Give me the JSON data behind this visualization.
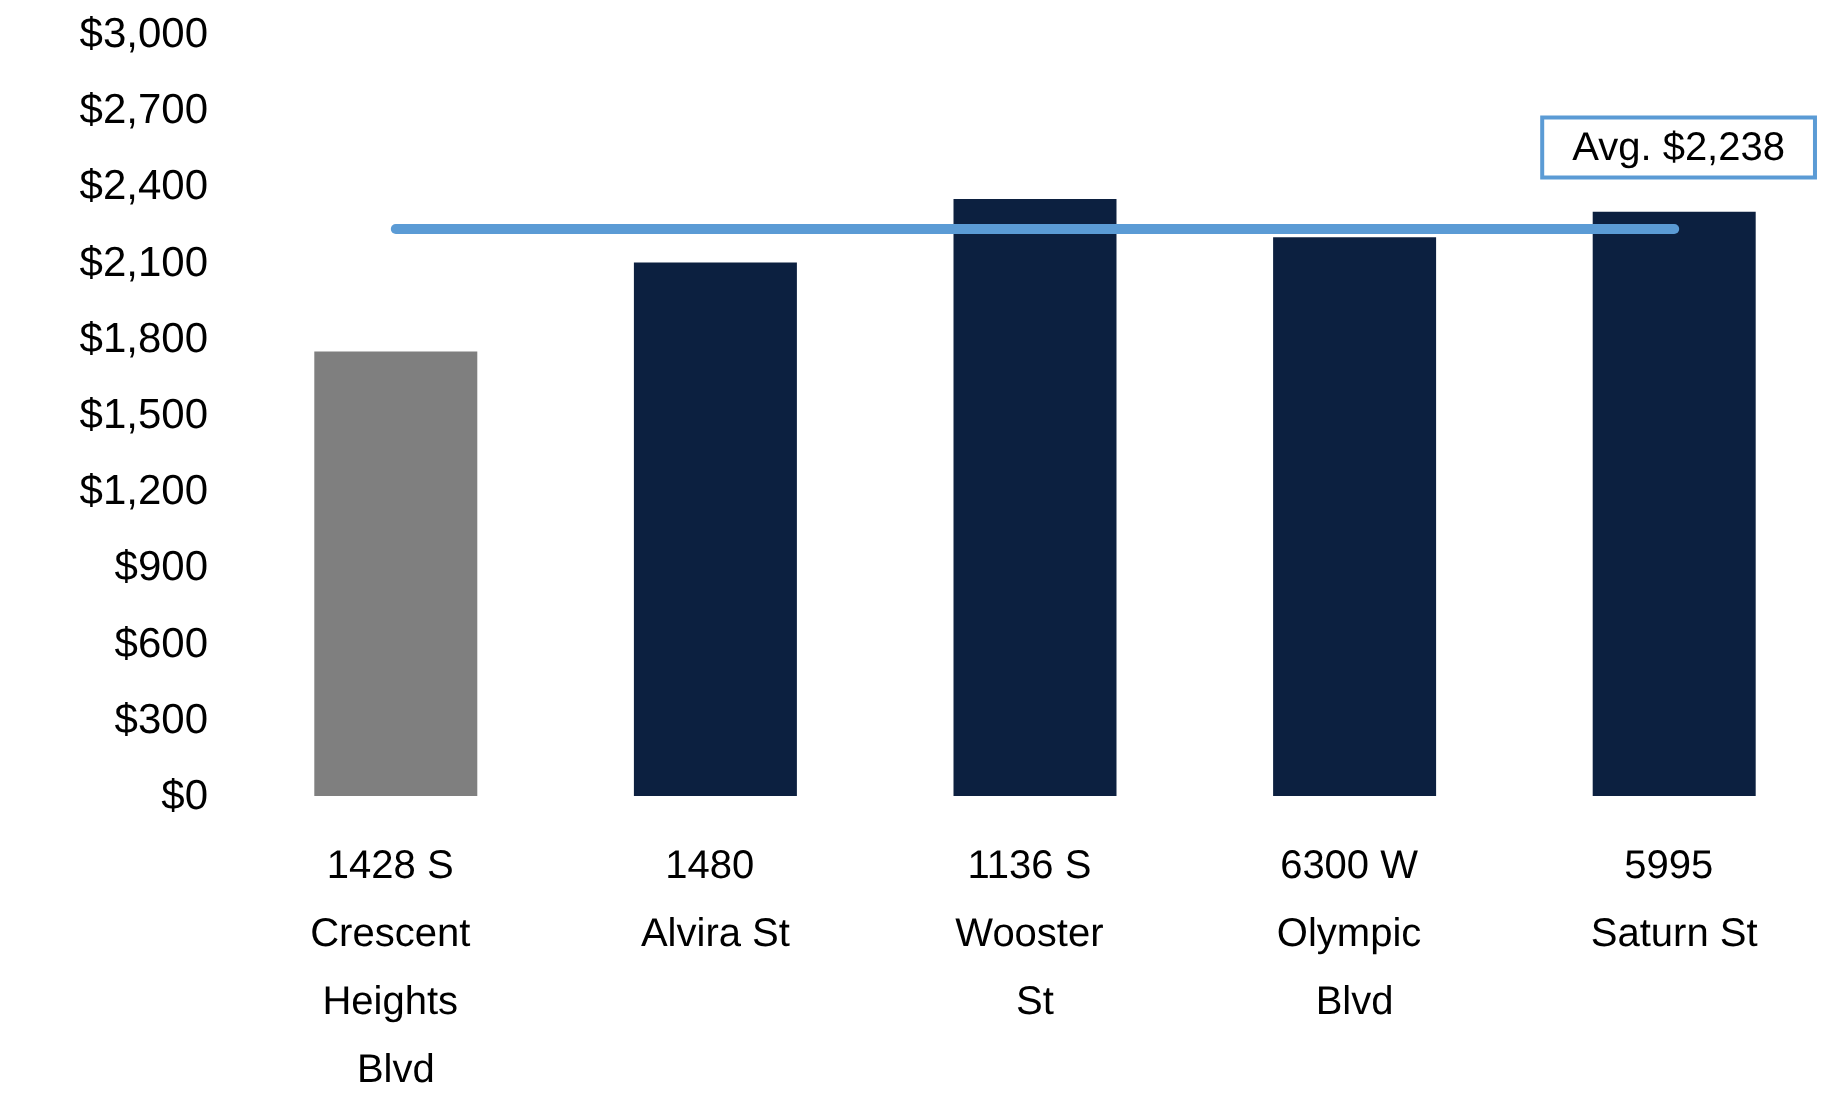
{
  "chart_data": {
    "type": "bar",
    "categories": [
      "1428 S Crescent Heights Blvd",
      "1480 Alvira St",
      "1136 S Wooster St",
      "6300 W Olympic Blvd",
      "5995 Saturn St"
    ],
    "values": [
      1750,
      2100,
      2350,
      2200,
      2300
    ],
    "colors": [
      "#7f7f7f",
      "#0c2040",
      "#0c2040",
      "#0c2040",
      "#0c2040"
    ],
    "ylim": [
      0,
      3000
    ],
    "yticks": [
      {
        "value": 0,
        "label": "$0"
      },
      {
        "value": 300,
        "label": "$300"
      },
      {
        "value": 600,
        "label": "$600"
      },
      {
        "value": 900,
        "label": "$900"
      },
      {
        "value": 1200,
        "label": "$1,200"
      },
      {
        "value": 1500,
        "label": "$1,500"
      },
      {
        "value": 1800,
        "label": "$1,800"
      },
      {
        "value": 2100,
        "label": "$2,100"
      },
      {
        "value": 2400,
        "label": "$2,400"
      },
      {
        "value": 2700,
        "label": "$2,700"
      },
      {
        "value": 3000,
        "label": "$3,000"
      }
    ],
    "ref_lines": [
      {
        "axis": "y",
        "value": 2238,
        "label": "Avg. $2,238",
        "color": "#5b9bd5"
      }
    ],
    "grid": false
  }
}
